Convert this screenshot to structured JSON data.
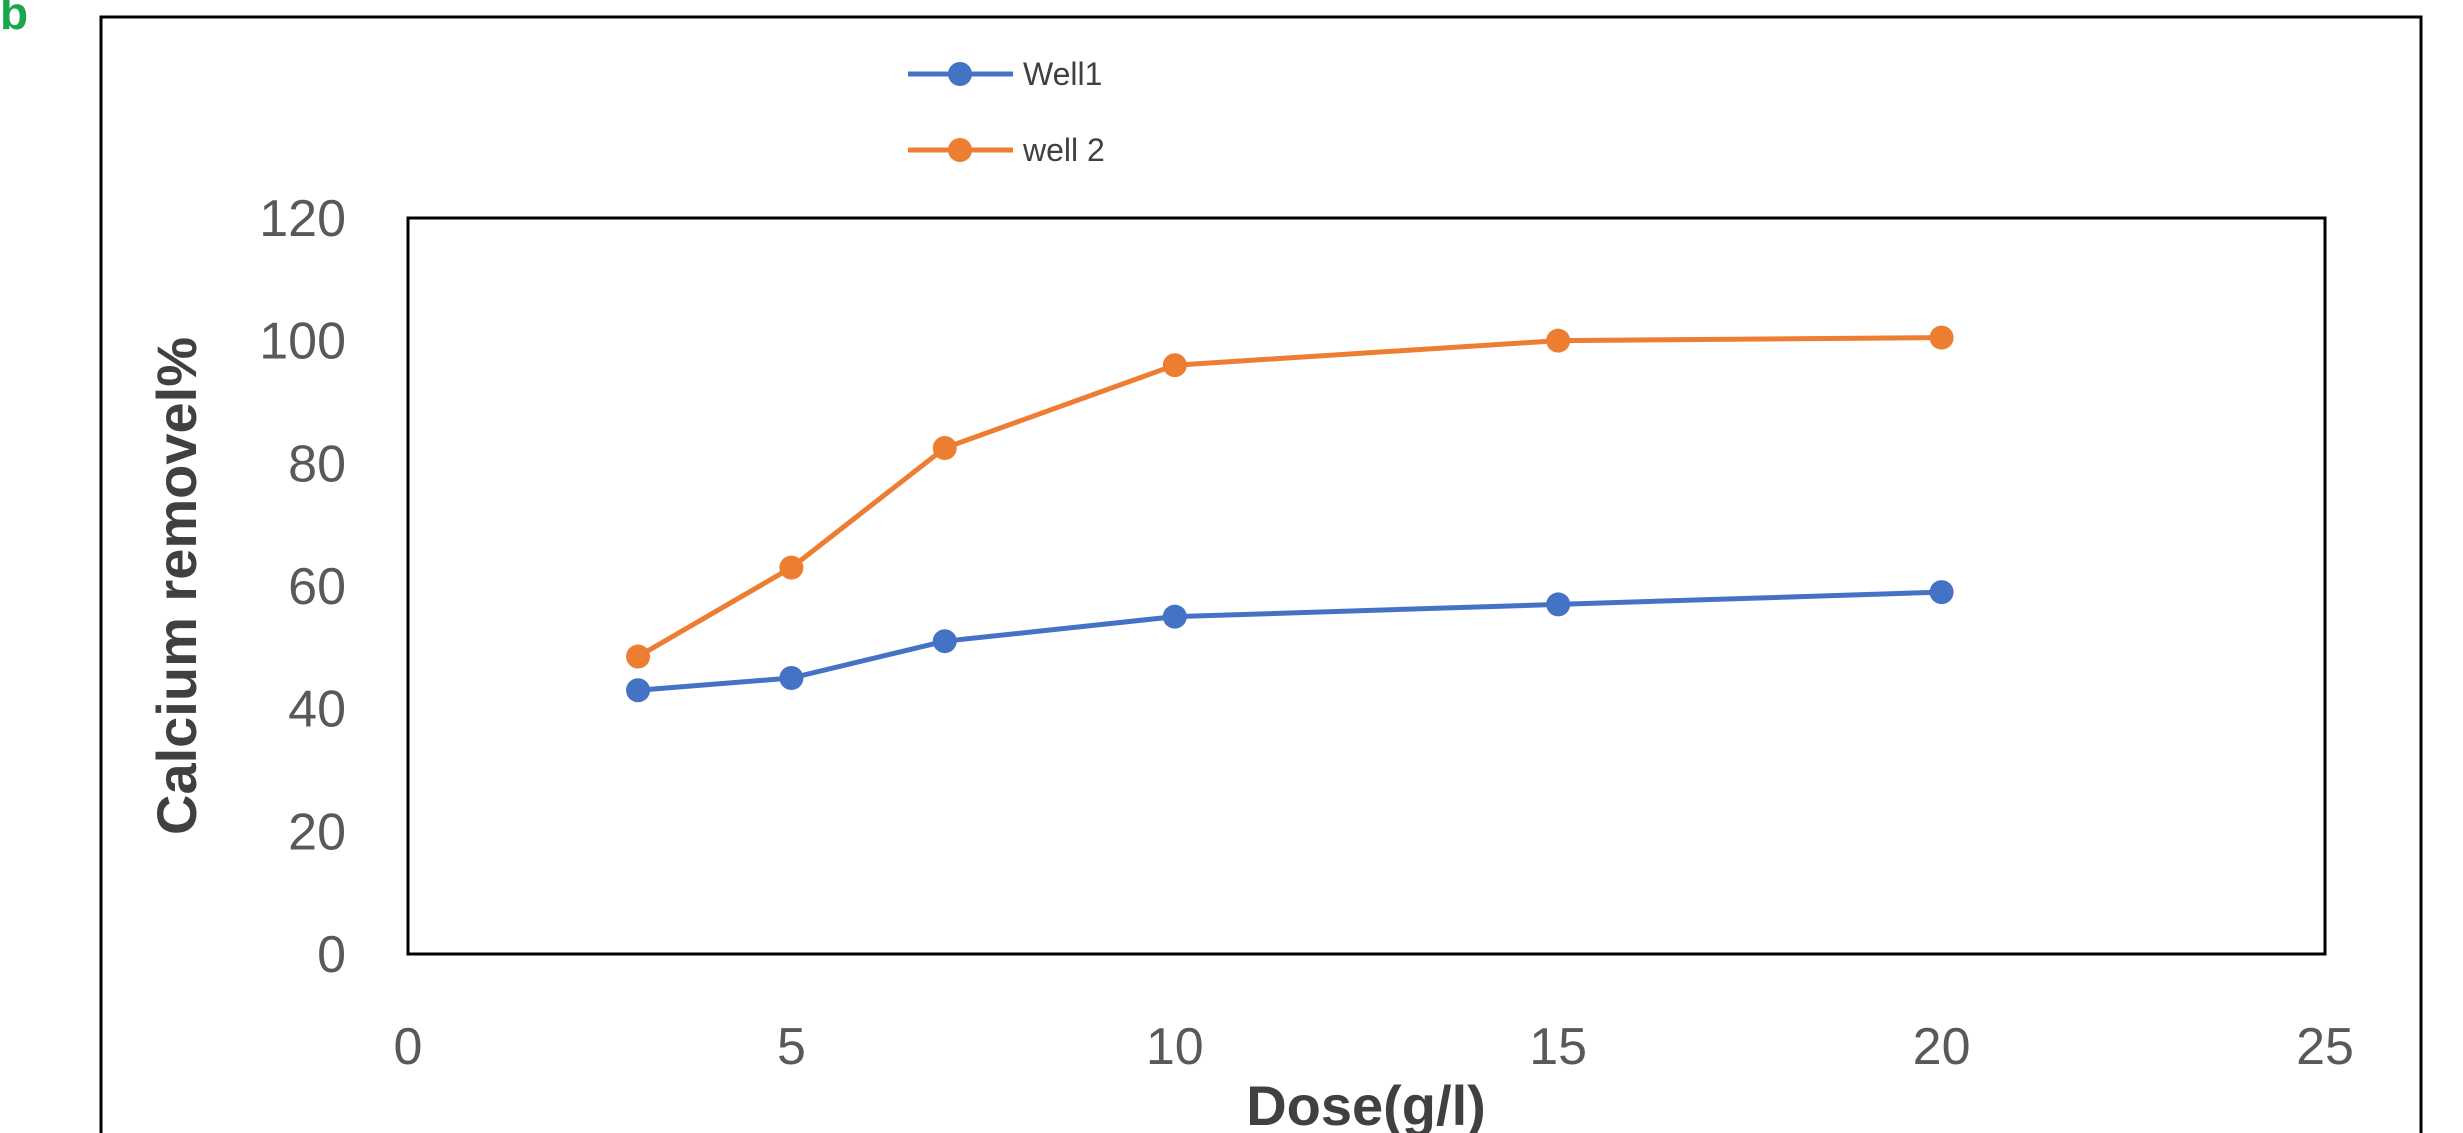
{
  "panel_label": "b",
  "chart_data": {
    "type": "line",
    "xlabel": "Dose(g/l)",
    "ylabel": "Calcium removel%",
    "xlim": [
      0,
      25
    ],
    "ylim": [
      0,
      120
    ],
    "xticks": [
      0,
      5,
      10,
      15,
      20,
      25
    ],
    "yticks": [
      0,
      20,
      40,
      60,
      80,
      100,
      120
    ],
    "grid": false,
    "legend_position": "top-left",
    "x": [
      3,
      5,
      7,
      10,
      15,
      20
    ],
    "series": [
      {
        "name": "Well1",
        "color": "#4472c4",
        "values": [
          43,
          45,
          51,
          55,
          57,
          59
        ]
      },
      {
        "name": "well 2",
        "color": "#ed7d31",
        "values": [
          48.5,
          63,
          82.5,
          96,
          100,
          100.5
        ]
      }
    ]
  }
}
